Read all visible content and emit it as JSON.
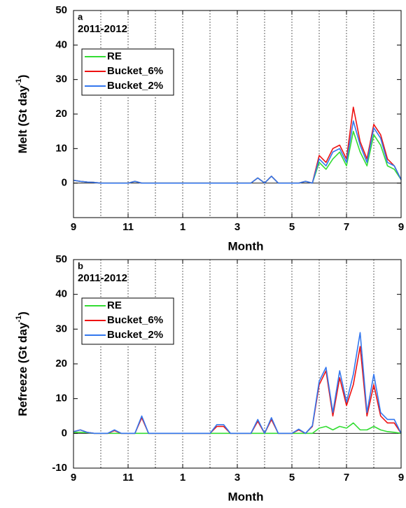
{
  "chart_data": [
    {
      "type": "line",
      "panel": "a",
      "annotation": "2011-2012",
      "ylabel": {
        "text": "Melt (Gt day",
        "exponent": "-1",
        "end": ")"
      },
      "xlabel": "Month",
      "xlim": [
        0,
        12
      ],
      "xticks": [
        {
          "value": 0,
          "label": "9"
        },
        {
          "value": 2,
          "label": "11"
        },
        {
          "value": 4,
          "label": "1"
        },
        {
          "value": 6,
          "label": "3"
        },
        {
          "value": 8,
          "label": "5"
        },
        {
          "value": 10,
          "label": "7"
        },
        {
          "value": 12,
          "label": "9"
        }
      ],
      "xgrid_minor": [
        1,
        3,
        5,
        7,
        9,
        11
      ],
      "ylim": [
        -10,
        50
      ],
      "yticks": [
        0,
        10,
        20,
        30,
        40,
        50
      ],
      "grid": true,
      "zero_line": true,
      "legend": "upper left",
      "x": [
        0,
        0.25,
        0.5,
        0.75,
        1,
        1.25,
        1.5,
        1.75,
        2,
        2.25,
        2.5,
        2.75,
        3,
        3.25,
        3.5,
        3.75,
        4,
        4.25,
        4.5,
        4.75,
        5,
        5.25,
        5.5,
        5.75,
        6,
        6.25,
        6.5,
        6.75,
        7,
        7.25,
        7.5,
        7.75,
        8,
        8.25,
        8.5,
        8.75,
        9,
        9.25,
        9.5,
        9.75,
        10,
        10.25,
        10.5,
        10.75,
        11,
        11.25,
        11.5,
        11.75,
        12
      ],
      "series": [
        {
          "name": "RE",
          "color": "#33dd33",
          "values": [
            0.8,
            0.5,
            0.3,
            0.2,
            0,
            0,
            0,
            0,
            0,
            0.5,
            0,
            0,
            0,
            0,
            0,
            0,
            0,
            0,
            0,
            0,
            0,
            0,
            0,
            0,
            0,
            0,
            0,
            1.5,
            0,
            2,
            0,
            0,
            0,
            0,
            0.5,
            0,
            6,
            4,
            7,
            9,
            5,
            15,
            9,
            5,
            14,
            11,
            5,
            4,
            1
          ]
        },
        {
          "name": "Bucket_6%",
          "color": "#ee1111",
          "values": [
            0.8,
            0.5,
            0.3,
            0.2,
            0,
            0,
            0,
            0,
            0,
            0.5,
            0,
            0,
            0,
            0,
            0,
            0,
            0,
            0,
            0,
            0,
            0,
            0,
            0,
            0,
            0,
            0,
            0,
            1.5,
            0,
            2,
            0,
            0,
            0,
            0,
            0.5,
            0,
            8,
            6,
            10,
            11,
            7,
            22,
            12,
            7,
            17,
            14,
            7,
            5,
            1
          ]
        },
        {
          "name": "Bucket_2%",
          "color": "#3377ee",
          "values": [
            0.8,
            0.5,
            0.3,
            0.2,
            0,
            0,
            0,
            0,
            0,
            0.5,
            0,
            0,
            0,
            0,
            0,
            0,
            0,
            0,
            0,
            0,
            0,
            0,
            0,
            0,
            0,
            0,
            0,
            1.5,
            0,
            2,
            0,
            0,
            0,
            0,
            0.5,
            0,
            7,
            5,
            9,
            10,
            6,
            18,
            11,
            6,
            16,
            13,
            6,
            5,
            1
          ]
        }
      ]
    },
    {
      "type": "line",
      "panel": "b",
      "annotation": "2011-2012",
      "ylabel": {
        "text": "Refreeze (Gt day",
        "exponent": "-1",
        "end": ")"
      },
      "xlabel": "Month",
      "xlim": [
        0,
        12
      ],
      "xticks": [
        {
          "value": 0,
          "label": "9"
        },
        {
          "value": 2,
          "label": "11"
        },
        {
          "value": 4,
          "label": "1"
        },
        {
          "value": 6,
          "label": "3"
        },
        {
          "value": 8,
          "label": "5"
        },
        {
          "value": 10,
          "label": "7"
        },
        {
          "value": 12,
          "label": "9"
        }
      ],
      "xgrid_minor": [
        1,
        3,
        5,
        7,
        9,
        11
      ],
      "ylim": [
        -10,
        50
      ],
      "yticks": [
        -10,
        0,
        10,
        20,
        30,
        40,
        50
      ],
      "grid": true,
      "zero_line": true,
      "legend": "upper left",
      "x": [
        0,
        0.25,
        0.5,
        0.75,
        1,
        1.25,
        1.5,
        1.75,
        2,
        2.25,
        2.5,
        2.75,
        3,
        3.25,
        3.5,
        3.75,
        4,
        4.25,
        4.5,
        4.75,
        5,
        5.25,
        5.5,
        5.75,
        6,
        6.25,
        6.5,
        6.75,
        7,
        7.25,
        7.5,
        7.75,
        8,
        8.25,
        8.5,
        8.75,
        9,
        9.25,
        9.5,
        9.75,
        10,
        10.25,
        10.5,
        10.75,
        11,
        11.25,
        11.5,
        11.75,
        12
      ],
      "series": [
        {
          "name": "RE",
          "color": "#33dd33",
          "values": [
            0.3,
            0.3,
            0.2,
            0,
            0,
            0,
            0,
            0,
            0,
            0,
            0,
            0,
            0,
            0,
            0,
            0,
            0,
            0,
            0,
            0,
            0,
            0,
            0,
            0,
            0,
            0,
            0,
            0,
            0,
            0,
            0,
            0,
            0,
            0,
            0,
            0,
            1.5,
            2,
            1,
            2,
            1.5,
            3,
            1,
            1,
            2,
            1,
            0.5,
            0.3,
            0
          ]
        },
        {
          "name": "Bucket_6%",
          "color": "#ee1111",
          "values": [
            0.5,
            1,
            0.3,
            0,
            0,
            0,
            0.8,
            0,
            0,
            0,
            4.5,
            0,
            0,
            0,
            0,
            0,
            0,
            0,
            0,
            0,
            0,
            2,
            2,
            0,
            0,
            0,
            0,
            3.5,
            0,
            4,
            0,
            0,
            0,
            1,
            0,
            2,
            14,
            18,
            5,
            16,
            8,
            14,
            25,
            5,
            14,
            5,
            3,
            3,
            0
          ]
        },
        {
          "name": "Bucket_2%",
          "color": "#3377ee",
          "values": [
            0.5,
            1,
            0.3,
            0,
            0,
            0,
            1,
            0,
            0,
            0,
            5,
            0,
            0,
            0,
            0,
            0,
            0,
            0,
            0,
            0,
            0,
            2.5,
            2.5,
            0,
            0,
            0,
            0,
            4,
            0,
            4.5,
            0,
            0,
            0,
            1.2,
            0,
            2.2,
            15,
            19,
            6,
            18,
            9,
            17,
            29,
            6,
            17,
            6,
            4,
            4,
            0
          ]
        }
      ]
    }
  ]
}
